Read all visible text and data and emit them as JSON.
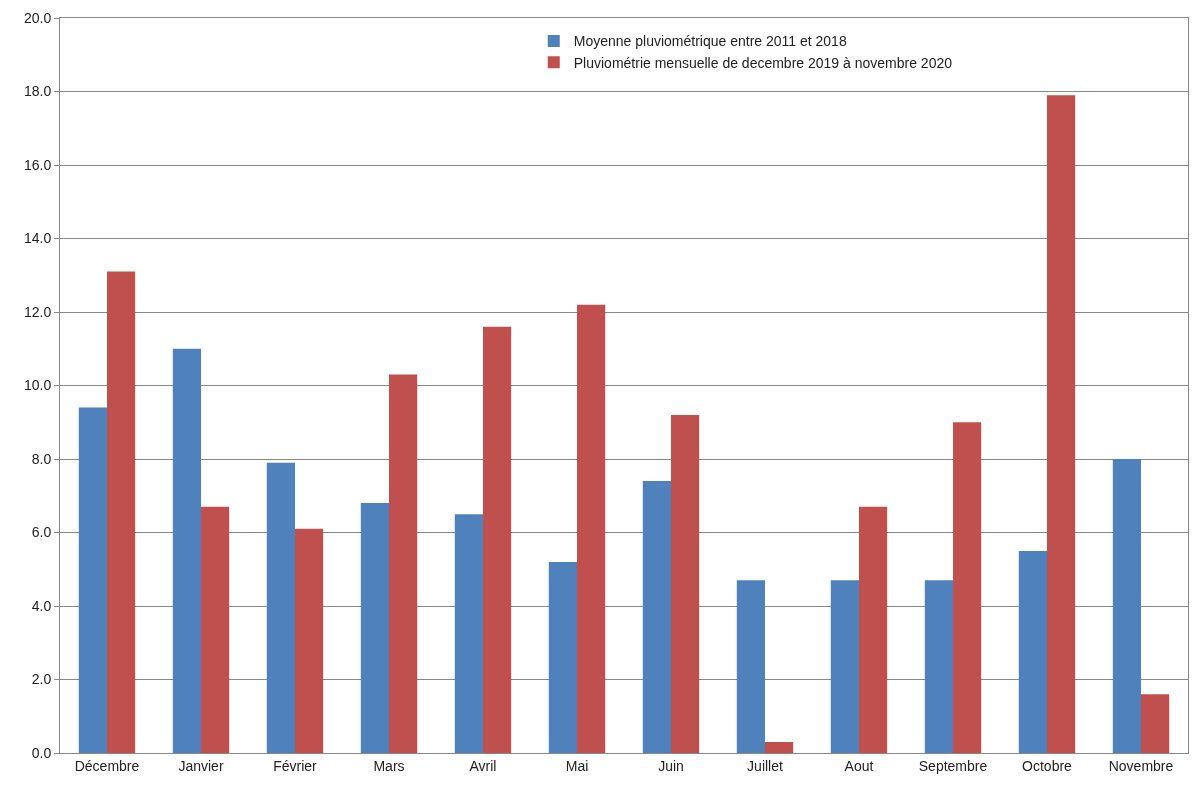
{
  "chart_data": {
    "type": "bar",
    "categories": [
      "Décembre",
      "Janvier",
      "Février",
      "Mars",
      "Avril",
      "Mai",
      "Juin",
      "Juillet",
      "Aout",
      "Septembre",
      "Octobre",
      "Novembre"
    ],
    "series": [
      {
        "name": "Moyenne pluviométrique entre 2011 et 2018",
        "color": "#4f81bd",
        "values": [
          9.4,
          11.0,
          7.9,
          6.8,
          6.5,
          5.2,
          7.4,
          4.7,
          4.7,
          4.7,
          5.5,
          8.0
        ]
      },
      {
        "name": "Pluviométrie mensuelle de decembre 2019 à novembre 2020",
        "color": "#c0504d",
        "values": [
          13.1,
          6.7,
          6.1,
          10.3,
          11.6,
          12.2,
          9.2,
          0.3,
          6.7,
          9.0,
          17.9,
          1.6
        ]
      }
    ],
    "ylim": [
      0,
      20
    ],
    "yticks": [
      {
        "value": 0,
        "label": "0.0"
      },
      {
        "value": 2,
        "label": "2.0"
      },
      {
        "value": 4,
        "label": "4.0"
      },
      {
        "value": 6,
        "label": "6.0"
      },
      {
        "value": 8,
        "label": "8.0"
      },
      {
        "value": 10,
        "label": "10.0"
      },
      {
        "value": 12,
        "label": "12.0"
      },
      {
        "value": 14,
        "label": "14.0"
      },
      {
        "value": 16,
        "label": "16.0"
      },
      {
        "value": 18,
        "label": "18.0"
      },
      {
        "value": 20,
        "label": "20.0"
      }
    ],
    "grid": "y",
    "legend": "top"
  }
}
